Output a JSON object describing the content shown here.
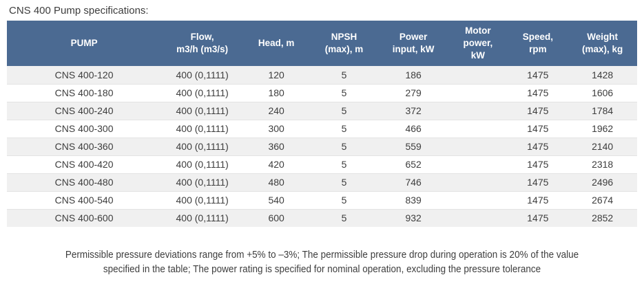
{
  "title": "CNS 400 Pump specifications:",
  "colors": {
    "header_bg": "#4b6a92",
    "header_text": "#ffffff",
    "row_stripe": "#f0f0f0",
    "body_text": "#3d3d3d"
  },
  "table": {
    "columns": [
      {
        "key": "pump",
        "label": "PUMP"
      },
      {
        "key": "flow",
        "label": "Flow,\nm3/h (m3/s)"
      },
      {
        "key": "head",
        "label": "Head, m"
      },
      {
        "key": "npsh",
        "label": "NPSH\n(max), m"
      },
      {
        "key": "power-input",
        "label": "Power\ninput, kW"
      },
      {
        "key": "motor-power",
        "label": "Motor\npower,\nkW"
      },
      {
        "key": "speed",
        "label": "Speed,\nrpm"
      },
      {
        "key": "weight",
        "label": "Weight\n(max), kg"
      }
    ],
    "rows": [
      [
        "CNS 400-120",
        "400 (0,1111)",
        "120",
        "5",
        "186",
        "",
        "1475",
        "1428"
      ],
      [
        "CNS 400-180",
        "400 (0,1111)",
        "180",
        "5",
        "279",
        "",
        "1475",
        "1606"
      ],
      [
        "CNS 400-240",
        "400 (0,1111)",
        "240",
        "5",
        "372",
        "",
        "1475",
        "1784"
      ],
      [
        "CNS 400-300",
        "400 (0,1111)",
        "300",
        "5",
        "466",
        "",
        "1475",
        "1962"
      ],
      [
        "CNS 400-360",
        "400 (0,1111)",
        "360",
        "5",
        "559",
        "",
        "1475",
        "2140"
      ],
      [
        "CNS 400-420",
        "400 (0,1111)",
        "420",
        "5",
        "652",
        "",
        "1475",
        "2318"
      ],
      [
        "CNS 400-480",
        "400 (0,1111)",
        "480",
        "5",
        "746",
        "",
        "1475",
        "2496"
      ],
      [
        "CNS 400-540",
        "400 (0,1111)",
        "540",
        "5",
        "839",
        "",
        "1475",
        "2674"
      ],
      [
        "CNS 400-600",
        "400 (0,1111)",
        "600",
        "5",
        "932",
        "",
        "1475",
        "2852"
      ]
    ]
  },
  "footnote": "Permissible pressure deviations range from +5% to –3%; The permissible pressure drop during operation is 20% of the value\nspecified in the table; The power rating is specified for nominal operation, excluding the pressure tolerance"
}
